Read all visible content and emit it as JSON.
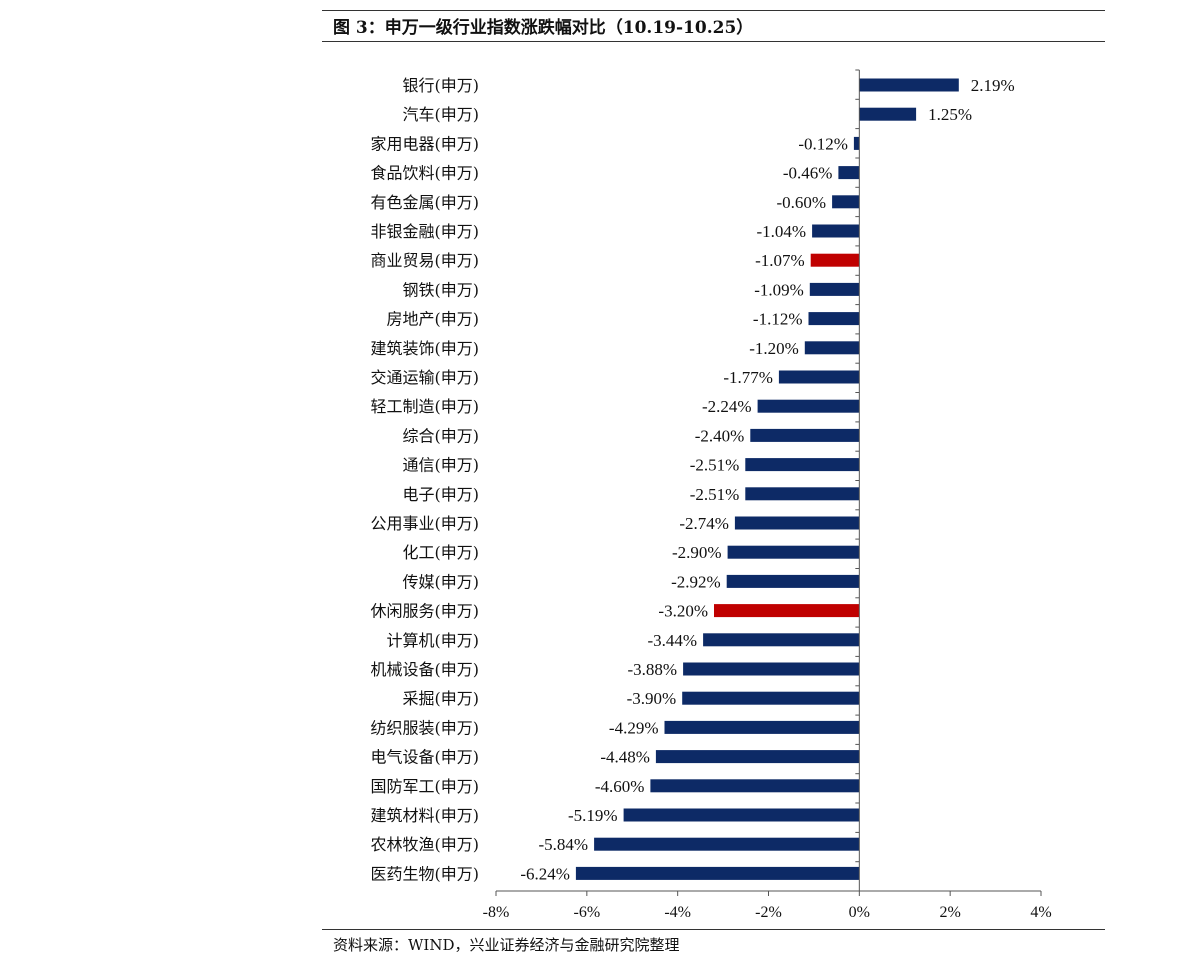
{
  "title": "图 3：申万一级行业指数涨跌幅对比（10.19-10.25）",
  "source": "资料来源：WIND，兴业证券经济与金融研究院整理",
  "colors": {
    "bar": "#0d2a66",
    "highlight": "#c00000",
    "axis": "#555555"
  },
  "chart_data": {
    "type": "bar",
    "orientation": "horizontal",
    "title": "",
    "xlabel": "",
    "ylabel": "",
    "categories": [
      "银行(申万)",
      "汽车(申万)",
      "家用电器(申万)",
      "食品饮料(申万)",
      "有色金属(申万)",
      "非银金融(申万)",
      "商业贸易(申万)",
      "钢铁(申万)",
      "房地产(申万)",
      "建筑装饰(申万)",
      "交通运输(申万)",
      "轻工制造(申万)",
      "综合(申万)",
      "通信(申万)",
      "电子(申万)",
      "公用事业(申万)",
      "化工(申万)",
      "传媒(申万)",
      "休闲服务(申万)",
      "计算机(申万)",
      "机械设备(申万)",
      "采掘(申万)",
      "纺织服装(申万)",
      "电气设备(申万)",
      "国防军工(申万)",
      "建筑材料(申万)",
      "农林牧渔(申万)",
      "医药生物(申万)"
    ],
    "values": [
      2.19,
      1.25,
      -0.12,
      -0.46,
      -0.6,
      -1.04,
      -1.07,
      -1.09,
      -1.12,
      -1.2,
      -1.77,
      -2.24,
      -2.4,
      -2.51,
      -2.51,
      -2.74,
      -2.9,
      -2.92,
      -3.2,
      -3.44,
      -3.88,
      -3.9,
      -4.29,
      -4.48,
      -4.6,
      -5.19,
      -5.84,
      -6.24
    ],
    "data_labels": [
      "2.19%",
      "1.25%",
      "-0.12%",
      "-0.46%",
      "-0.60%",
      "-1.04%",
      "-1.07%",
      "-1.09%",
      "-1.12%",
      "-1.20%",
      "-1.77%",
      "-2.24%",
      "-2.40%",
      "-2.51%",
      "-2.51%",
      "-2.74%",
      "-2.90%",
      "-2.92%",
      "-3.20%",
      "-3.44%",
      "-3.88%",
      "-3.90%",
      "-4.29%",
      "-4.48%",
      "-4.60%",
      "-5.19%",
      "-5.84%",
      "-6.24%"
    ],
    "highlighted": [
      "商业贸易(申万)",
      "休闲服务(申万)"
    ],
    "xlim": [
      -8,
      4
    ],
    "xticks": [
      -8,
      -6,
      -4,
      -2,
      0,
      2,
      4
    ],
    "xtick_labels": [
      "-8%",
      "-6%",
      "-4%",
      "-2%",
      "0%",
      "2%",
      "4%"
    ],
    "unit": "%",
    "grid": false,
    "legend": "none"
  }
}
